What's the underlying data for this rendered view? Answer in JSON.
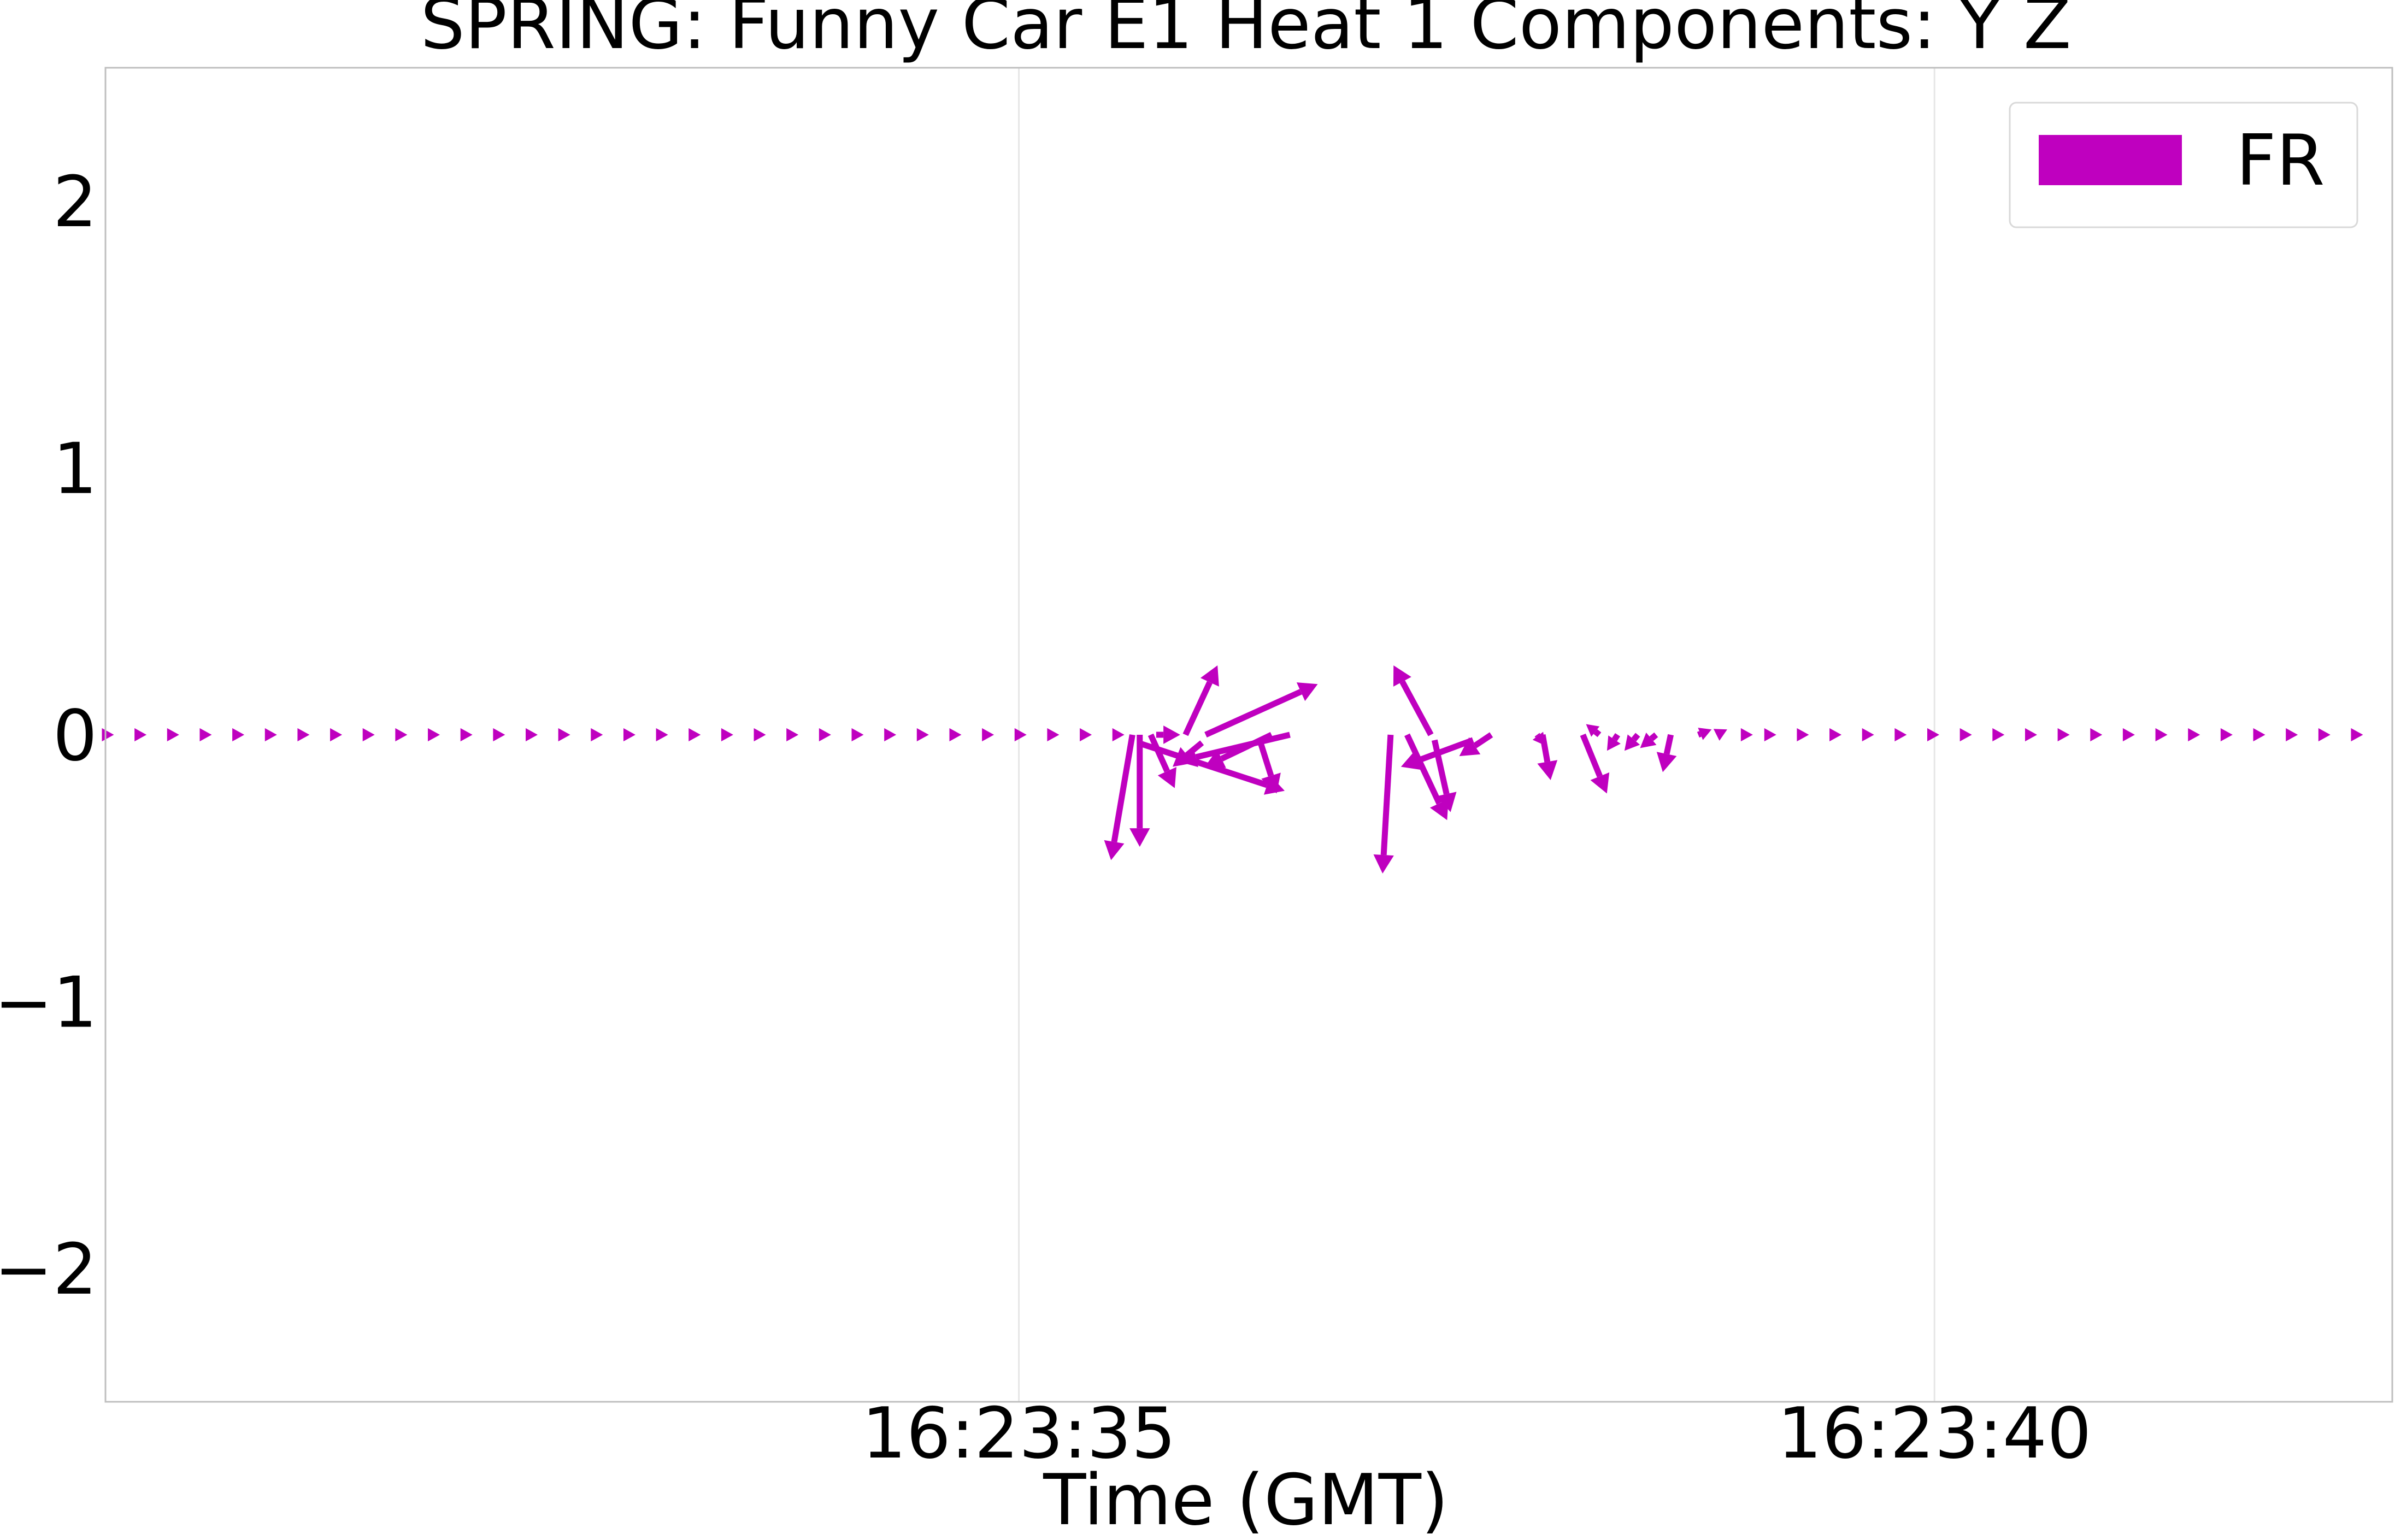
{
  "chart_data": {
    "type": "quiver",
    "title": "SPRING: Funny Car E1 Heat 1 Components: Y Z",
    "xlabel": "Time (GMT)",
    "ylabel": "",
    "x_ticks": [
      {
        "time": "16:23:35",
        "label": "16:23:35"
      },
      {
        "time": "16:23:40",
        "label": "16:23:40"
      }
    ],
    "xlim": [
      "16:23:30.012",
      "16:23:42.500"
    ],
    "y_ticks": [
      {
        "value": -2,
        "label": "−2"
      },
      {
        "value": -1,
        "label": "−1"
      },
      {
        "value": 0,
        "label": "0"
      },
      {
        "value": 1,
        "label": "1"
      },
      {
        "value": 2,
        "label": "2"
      }
    ],
    "ylim": [
      -2.5,
      2.5
    ],
    "grid": "vertical",
    "legend": {
      "position": "top-right"
    },
    "series": [
      {
        "name": "FR",
        "color": "#BF00BF",
        "note_x_seconds_after": "16:23:30",
        "vectors": [
          {
            "t": 5.62,
            "y": 0.0,
            "u": -0.08,
            "v": -0.47
          },
          {
            "t": 5.66,
            "y": 0.0,
            "u": 0.0,
            "v": -0.42
          },
          {
            "t": 5.72,
            "y": 0.0,
            "u": 0.09,
            "v": -0.2
          },
          {
            "t": 5.91,
            "y": 0.0,
            "u": 0.12,
            "v": 0.26
          },
          {
            "t": 6.02,
            "y": 0.0,
            "u": 0.42,
            "v": 0.19
          },
          {
            "t": 6.48,
            "y": 0.0,
            "u": -0.42,
            "v": -0.1
          },
          {
            "t": 5.65,
            "y": -0.03,
            "u": 0.55,
            "v": -0.18
          },
          {
            "t": 6.38,
            "y": 0.0,
            "u": -0.25,
            "v": -0.12
          },
          {
            "t": 6.32,
            "y": -0.03,
            "u": 0.06,
            "v": -0.19
          },
          {
            "t": 6.0,
            "y": -0.03,
            "u": -0.11,
            "v": -0.09
          },
          {
            "t": 5.75,
            "y": 0.0,
            "u": 0.09,
            "v": 0.0
          },
          {
            "t": 7.25,
            "y": 0.0,
            "u": -0.14,
            "v": 0.26
          },
          {
            "t": 7.03,
            "y": 0.0,
            "u": -0.03,
            "v": -0.52
          },
          {
            "t": 7.27,
            "y": -0.02,
            "u": 0.06,
            "v": -0.27
          },
          {
            "t": 7.12,
            "y": 0.0,
            "u": 0.15,
            "v": -0.32
          },
          {
            "t": 7.48,
            "y": -0.02,
            "u": -0.27,
            "v": -0.1
          },
          {
            "t": 7.58,
            "y": 0.0,
            "u": -0.12,
            "v": -0.08
          },
          {
            "t": 7.86,
            "y": 0.0,
            "u": 0.03,
            "v": -0.17
          },
          {
            "t": 8.08,
            "y": 0.0,
            "u": 0.09,
            "v": -0.22
          },
          {
            "t": 8.17,
            "y": 0.0,
            "u": -0.05,
            "v": 0.04
          },
          {
            "t": 8.27,
            "y": 0.0,
            "u": -0.04,
            "v": -0.06
          },
          {
            "t": 8.38,
            "y": 0.0,
            "u": -0.05,
            "v": -0.06
          },
          {
            "t": 8.56,
            "y": 0.0,
            "u": -0.03,
            "v": -0.14
          },
          {
            "t": 8.71,
            "y": 0.0,
            "u": 0.05,
            "v": 0.02
          },
          {
            "t": 8.81,
            "y": 0.0,
            "u": 0.04,
            "v": 0.02
          },
          {
            "t": 8.95,
            "y": 0.0,
            "u": 0.04,
            "v": 0.0
          },
          {
            "t": 7.83,
            "y": 0.0,
            "u": 0.03,
            "v": -0.04
          },
          {
            "t": 8.48,
            "y": 0.0,
            "u": -0.06,
            "v": -0.05
          }
        ],
        "steady_vectors": {
          "description": "evenly spaced small vectors at y = 0 before 16:23:35.6 and after 16:23:39.0",
          "start": 0.0,
          "end": 12.4,
          "spacing": 0.178,
          "gap": [
            5.55,
            9.05
          ],
          "u": 0.04,
          "v": 0.0
        }
      }
    ]
  }
}
